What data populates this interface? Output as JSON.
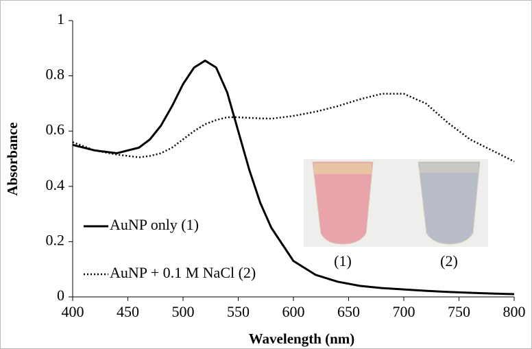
{
  "chart_data": {
    "type": "line",
    "x_label": "Wavelength (nm)",
    "y_label": "Absorbance",
    "x": [
      400,
      420,
      440,
      460,
      470,
      480,
      490,
      500,
      510,
      520,
      530,
      540,
      550,
      560,
      570,
      580,
      600,
      620,
      640,
      660,
      680,
      700,
      720,
      740,
      760,
      780,
      800
    ],
    "series": [
      {
        "name": "AuNP only (1)",
        "color": "#000000",
        "style": "solid",
        "values": [
          0.55,
          0.53,
          0.52,
          0.54,
          0.57,
          0.62,
          0.69,
          0.77,
          0.83,
          0.855,
          0.83,
          0.74,
          0.6,
          0.46,
          0.34,
          0.25,
          0.13,
          0.08,
          0.055,
          0.04,
          0.032,
          0.027,
          0.022,
          0.018,
          0.015,
          0.012,
          0.01
        ]
      },
      {
        "name": "AuNP + 0.1 M NaCl (2)",
        "color": "#000000",
        "style": "dotted",
        "values": [
          0.56,
          0.53,
          0.515,
          0.505,
          0.51,
          0.52,
          0.54,
          0.57,
          0.6,
          0.625,
          0.64,
          0.65,
          0.65,
          0.648,
          0.646,
          0.645,
          0.655,
          0.67,
          0.69,
          0.715,
          0.735,
          0.735,
          0.7,
          0.63,
          0.57,
          0.53,
          0.49
        ]
      }
    ],
    "xlim": [
      400,
      800
    ],
    "xticks": [
      400,
      450,
      500,
      550,
      600,
      650,
      700,
      750,
      800
    ],
    "ylim": [
      0,
      1
    ],
    "yticks": [
      0,
      0.2,
      0.4,
      0.6,
      0.8,
      1
    ],
    "grid": false,
    "legend": "lower left",
    "annotations": [
      "(1)",
      "(2)"
    ]
  }
}
